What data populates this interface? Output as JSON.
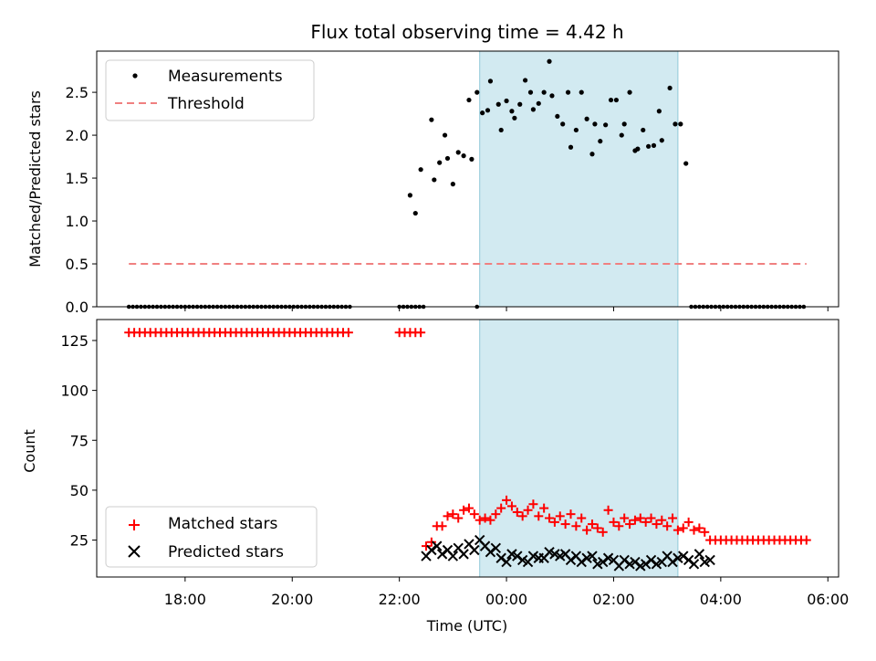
{
  "chart_data": [
    {
      "type": "scatter",
      "title": "Flux total observing time = 4.42 h",
      "xlabel": "",
      "ylabel": "Matched/Predicted stars",
      "xlim": [
        16.35,
        30.2
      ],
      "ylim": [
        0,
        2.98
      ],
      "yticks": [
        0.0,
        0.5,
        1.0,
        1.5,
        2.0,
        2.5
      ],
      "ytick_labels": [
        "0.0",
        "0.5",
        "1.0",
        "1.5",
        "2.0",
        "2.5"
      ],
      "shaded_span": [
        23.5,
        27.2
      ],
      "legend_position": "upper-left",
      "legend": [
        "Measurements",
        "Threshold"
      ],
      "threshold": {
        "name": "Threshold",
        "y": 0.5,
        "x_range": [
          16.95,
          29.6
        ],
        "color": "#f08080"
      },
      "series": [
        {
          "name": "Measurements",
          "color": "#000000",
          "points": [
            [
              22.2,
              1.3
            ],
            [
              22.3,
              1.09
            ],
            [
              22.4,
              1.6
            ],
            [
              22.6,
              2.18
            ],
            [
              22.65,
              1.48
            ],
            [
              22.75,
              1.68
            ],
            [
              22.85,
              2.0
            ],
            [
              22.9,
              1.73
            ],
            [
              23.0,
              1.43
            ],
            [
              23.1,
              1.8
            ],
            [
              23.2,
              1.76
            ],
            [
              23.3,
              2.41
            ],
            [
              23.35,
              1.72
            ],
            [
              23.45,
              2.5
            ],
            [
              23.55,
              2.26
            ],
            [
              23.65,
              2.29
            ],
            [
              23.7,
              2.63
            ],
            [
              23.85,
              2.36
            ],
            [
              23.9,
              2.06
            ],
            [
              24.0,
              2.4
            ],
            [
              24.1,
              2.28
            ],
            [
              24.15,
              2.2
            ],
            [
              24.25,
              2.36
            ],
            [
              24.35,
              2.64
            ],
            [
              24.45,
              2.5
            ],
            [
              24.5,
              2.3
            ],
            [
              24.6,
              2.37
            ],
            [
              24.7,
              2.5
            ],
            [
              24.8,
              2.86
            ],
            [
              24.85,
              2.46
            ],
            [
              24.95,
              2.22
            ],
            [
              25.05,
              2.13
            ],
            [
              25.15,
              2.5
            ],
            [
              25.2,
              1.86
            ],
            [
              25.3,
              2.06
            ],
            [
              25.4,
              2.5
            ],
            [
              25.5,
              2.19
            ],
            [
              25.6,
              1.78
            ],
            [
              25.65,
              2.13
            ],
            [
              25.75,
              1.93
            ],
            [
              25.85,
              2.12
            ],
            [
              25.95,
              2.41
            ],
            [
              26.05,
              2.41
            ],
            [
              26.15,
              2.0
            ],
            [
              26.2,
              2.13
            ],
            [
              26.3,
              2.5
            ],
            [
              26.4,
              1.82
            ],
            [
              26.45,
              1.84
            ],
            [
              26.55,
              2.06
            ],
            [
              26.65,
              1.87
            ],
            [
              26.75,
              1.88
            ],
            [
              26.85,
              2.28
            ],
            [
              26.9,
              1.94
            ],
            [
              27.05,
              2.55
            ],
            [
              27.15,
              2.13
            ],
            [
              27.25,
              2.13
            ],
            [
              27.35,
              1.67
            ]
          ],
          "zero_ranges": [
            [
              16.95,
              21.1
            ],
            [
              22.0,
              22.45
            ],
            [
              23.45,
              23.5
            ],
            [
              27.45,
              29.6
            ]
          ]
        }
      ]
    },
    {
      "type": "scatter",
      "title": "",
      "xlabel": "Time (UTC)",
      "ylabel": "Count",
      "xlim": [
        16.35,
        30.2
      ],
      "ylim": [
        6.5,
        135.5
      ],
      "yticks": [
        25,
        50,
        75,
        100,
        125
      ],
      "ytick_labels": [
        "25",
        "50",
        "75",
        "100",
        "125"
      ],
      "xticks": [
        18,
        20,
        22,
        24,
        26,
        28,
        30
      ],
      "xtick_labels": [
        "18:00",
        "20:00",
        "22:00",
        "00:00",
        "02:00",
        "04:00",
        "06:00"
      ],
      "shaded_span": [
        23.5,
        27.2
      ],
      "legend_position": "lower-left",
      "legend": [
        "Matched stars",
        "Predicted stars"
      ],
      "series": [
        {
          "name": "Matched stars",
          "color": "#ff0000",
          "marker": "plus",
          "points": [
            [
              22.5,
              22
            ],
            [
              22.6,
              24
            ],
            [
              22.7,
              32
            ],
            [
              22.8,
              32
            ],
            [
              22.9,
              37
            ],
            [
              23.0,
              38
            ],
            [
              23.1,
              36
            ],
            [
              23.2,
              40
            ],
            [
              23.3,
              41
            ],
            [
              23.4,
              38
            ],
            [
              23.5,
              35
            ],
            [
              23.6,
              36
            ],
            [
              23.7,
              35
            ],
            [
              23.8,
              38
            ],
            [
              23.9,
              41
            ],
            [
              24.0,
              45
            ],
            [
              24.1,
              42
            ],
            [
              24.2,
              39
            ],
            [
              24.3,
              37
            ],
            [
              24.4,
              40
            ],
            [
              24.5,
              43
            ],
            [
              24.6,
              37
            ],
            [
              24.7,
              41
            ],
            [
              24.8,
              36
            ],
            [
              24.9,
              34
            ],
            [
              25.0,
              37
            ],
            [
              25.1,
              33
            ],
            [
              25.2,
              38
            ],
            [
              25.3,
              32
            ],
            [
              25.4,
              36
            ],
            [
              25.5,
              30
            ],
            [
              25.6,
              33
            ],
            [
              25.7,
              31
            ],
            [
              25.8,
              29
            ],
            [
              25.9,
              40
            ],
            [
              26.0,
              34
            ],
            [
              26.1,
              32
            ],
            [
              26.2,
              36
            ],
            [
              26.3,
              33
            ],
            [
              26.4,
              35
            ],
            [
              26.5,
              36
            ],
            [
              26.6,
              34
            ],
            [
              26.7,
              36
            ],
            [
              26.8,
              33
            ],
            [
              26.9,
              35
            ],
            [
              27.0,
              32
            ],
            [
              27.1,
              36
            ],
            [
              27.2,
              30
            ],
            [
              27.3,
              31
            ],
            [
              27.4,
              34
            ],
            [
              27.5,
              30
            ],
            [
              27.6,
              31
            ],
            [
              27.7,
              29
            ]
          ],
          "constant_ranges": [
            [
              16.95,
              21.1,
              129
            ],
            [
              22.0,
              22.45,
              129
            ],
            [
              27.8,
              29.6,
              25
            ]
          ]
        },
        {
          "name": "Predicted stars",
          "color": "#000000",
          "marker": "x",
          "points": [
            [
              22.5,
              17
            ],
            [
              22.6,
              20
            ],
            [
              22.7,
              22
            ],
            [
              22.8,
              18
            ],
            [
              22.9,
              20
            ],
            [
              23.0,
              17
            ],
            [
              23.1,
              21
            ],
            [
              23.2,
              18
            ],
            [
              23.3,
              23
            ],
            [
              23.4,
              20
            ],
            [
              23.5,
              25
            ],
            [
              23.6,
              22
            ],
            [
              23.7,
              19
            ],
            [
              23.8,
              21
            ],
            [
              23.9,
              16
            ],
            [
              24.0,
              14
            ],
            [
              24.1,
              18
            ],
            [
              24.2,
              17
            ],
            [
              24.3,
              15
            ],
            [
              24.4,
              14
            ],
            [
              24.5,
              17
            ],
            [
              24.6,
              16
            ],
            [
              24.7,
              16
            ],
            [
              24.8,
              19
            ],
            [
              24.9,
              18
            ],
            [
              25.0,
              17
            ],
            [
              25.1,
              18
            ],
            [
              25.2,
              15
            ],
            [
              25.3,
              17
            ],
            [
              25.4,
              14
            ],
            [
              25.5,
              16
            ],
            [
              25.6,
              17
            ],
            [
              25.7,
              13
            ],
            [
              25.8,
              14
            ],
            [
              25.9,
              16
            ],
            [
              26.0,
              15
            ],
            [
              26.1,
              12
            ],
            [
              26.2,
              15
            ],
            [
              26.3,
              13
            ],
            [
              26.4,
              14
            ],
            [
              26.5,
              12
            ],
            [
              26.6,
              13
            ],
            [
              26.7,
              15
            ],
            [
              26.8,
              13
            ],
            [
              26.9,
              14
            ],
            [
              27.0,
              17
            ],
            [
              27.1,
              14
            ],
            [
              27.2,
              16
            ],
            [
              27.3,
              17
            ],
            [
              27.4,
              15
            ],
            [
              27.5,
              13
            ],
            [
              27.6,
              18
            ],
            [
              27.7,
              14
            ],
            [
              27.8,
              15
            ]
          ]
        }
      ]
    }
  ]
}
